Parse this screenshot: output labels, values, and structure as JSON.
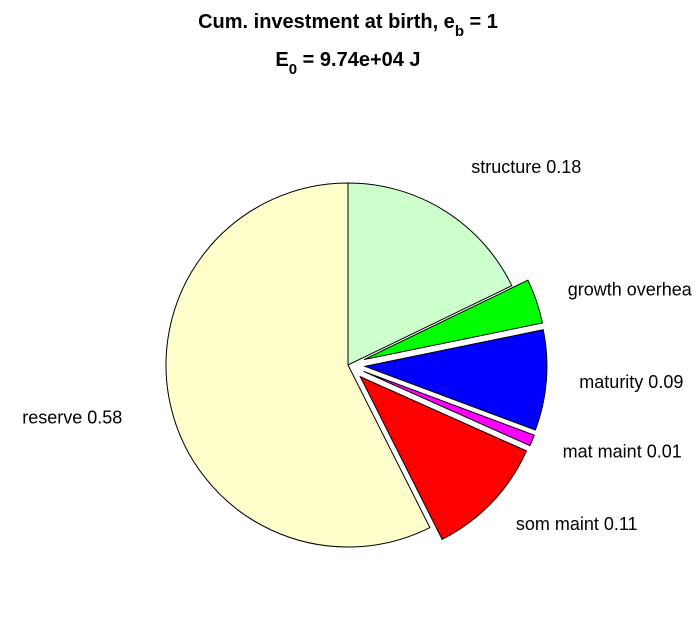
{
  "chart_data": {
    "type": "pie",
    "title": {
      "line1": {
        "text": "Cum. investment at birth, e",
        "sub": "b",
        "suffix": " = 1"
      },
      "line2": {
        "text": "E",
        "sub": "0",
        "suffix": " = 9.74e+04 J"
      }
    },
    "start_angle_deg": 90,
    "direction": "clockwise",
    "slices": [
      {
        "name": "structure",
        "label": "structure 0.18",
        "value": 0.18,
        "color": "#CCFFCC",
        "exploded": false
      },
      {
        "name": "growth-overhead",
        "label": "growth overhea",
        "value": 0.04,
        "color": "#00FF00",
        "exploded": true
      },
      {
        "name": "maturity",
        "label": "maturity 0.09",
        "value": 0.09,
        "color": "#0000FF",
        "exploded": true
      },
      {
        "name": "mat-maint",
        "label": "mat maint 0.01",
        "value": 0.01,
        "color": "#FF00FF",
        "exploded": true
      },
      {
        "name": "som-maint",
        "label": "som maint 0.11",
        "value": 0.11,
        "color": "#FF0000",
        "exploded": true
      },
      {
        "name": "reserve",
        "label": "reserve 0.58",
        "value": 0.58,
        "color": "#FFFFCC",
        "exploded": false
      }
    ]
  }
}
